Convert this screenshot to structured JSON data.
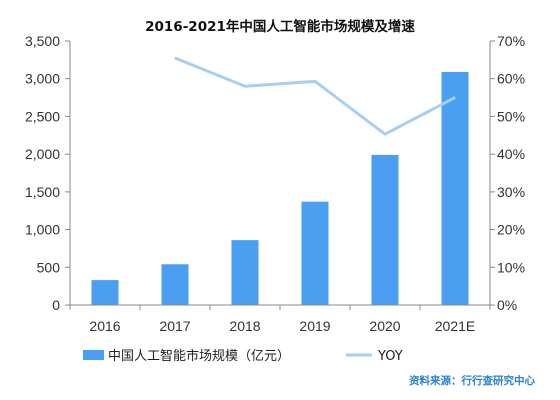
{
  "colors": {
    "bar": "#4a9ff1",
    "line": "#a7cff4",
    "axis": "#888888",
    "text": "#333333"
  },
  "source_text": "资料来源：行行查研究中心",
  "chart_data": {
    "type": "bar+line",
    "title": "2016-2021年中国人工智能市场规模及增速",
    "categories": [
      "2016",
      "2017",
      "2018",
      "2019",
      "2020",
      "2021E"
    ],
    "series": [
      {
        "name": "中国人工智能市场规模（亿元）",
        "type": "bar",
        "axis": "left",
        "values": [
          330,
          540,
          860,
          1370,
          1990,
          3090
        ]
      },
      {
        "name": "YOY",
        "type": "line",
        "axis": "right",
        "values": [
          null,
          65.5,
          58.0,
          59.3,
          45.3,
          55.0
        ]
      }
    ],
    "y_left": {
      "ylim": [
        0,
        3500
      ],
      "ticks": [
        0,
        500,
        1000,
        1500,
        2000,
        2500,
        3000,
        3500
      ],
      "tick_labels": [
        "0",
        "500",
        "1,000",
        "1,500",
        "2,000",
        "2,500",
        "3,000",
        "3,500"
      ]
    },
    "y_right": {
      "ylim": [
        0,
        70
      ],
      "ticks": [
        0,
        10,
        20,
        30,
        40,
        50,
        60,
        70
      ],
      "tick_labels": [
        "0%",
        "10%",
        "20%",
        "30%",
        "40%",
        "50%",
        "60%",
        "70%"
      ]
    },
    "grid": false,
    "legend_position": "bottom"
  }
}
